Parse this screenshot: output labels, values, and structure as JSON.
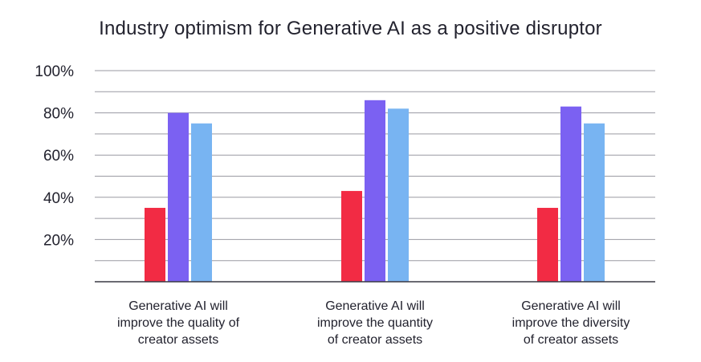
{
  "chart_data": {
    "type": "bar",
    "title": "Industry optimism for Generative AI as a positive disruptor",
    "categories": [
      "Generative AI will\nimprove the quality of\ncreator assets",
      "Generative AI will\nimprove the quantity\nof creator assets",
      "Generative AI will\nimprove the diversity\nof creator assets"
    ],
    "series": [
      {
        "values": [
          35,
          43,
          35
        ],
        "color": "#f22b44"
      },
      {
        "values": [
          80,
          86,
          83
        ],
        "color": "#7b61f2"
      },
      {
        "values": [
          75,
          82,
          75
        ],
        "color": "#78b4f2"
      }
    ],
    "ylim": [
      0,
      100
    ],
    "yticks": [
      "100%",
      "80%",
      "60%",
      "40%",
      "20%"
    ],
    "grid": true,
    "xlabel": "",
    "ylabel": ""
  }
}
